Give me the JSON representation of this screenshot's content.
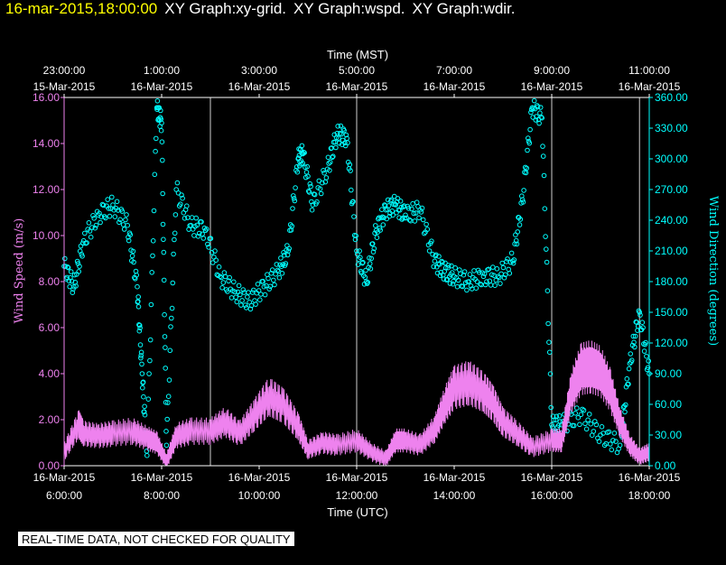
{
  "header": {
    "timestamp": "16-mar-2015,18:00:00",
    "titles": [
      "XY Graph:xy-grid.",
      "XY Graph:wspd.",
      "XY Graph:wdir."
    ]
  },
  "disclaimer": "REAL-TIME DATA, NOT CHECKED FOR QUALITY",
  "chart_data": {
    "type": "scatter",
    "top_axis": {
      "label": "Time (MST)",
      "ticks": [
        {
          "time": "23:00:00",
          "date": "15-Mar-2015"
        },
        {
          "time": "1:00:00",
          "date": "16-Mar-2015"
        },
        {
          "time": "3:00:00",
          "date": "16-Mar-2015"
        },
        {
          "time": "5:00:00",
          "date": "16-Mar-2015"
        },
        {
          "time": "7:00:00",
          "date": "16-Mar-2015"
        },
        {
          "time": "9:00:00",
          "date": "16-Mar-2015"
        },
        {
          "time": "11:00:00",
          "date": "16-Mar-2015"
        }
      ]
    },
    "bottom_axis": {
      "label": "Time (UTC)",
      "ticks": [
        {
          "date": "16-Mar-2015",
          "time": "6:00:00"
        },
        {
          "date": "16-Mar-2015",
          "time": "8:00:00"
        },
        {
          "date": "16-Mar-2015",
          "time": "10:00:00"
        },
        {
          "date": "16-Mar-2015",
          "time": "12:00:00"
        },
        {
          "date": "16-Mar-2015",
          "time": "14:00:00"
        },
        {
          "date": "16-Mar-2015",
          "time": "16:00:00"
        },
        {
          "date": "16-Mar-2015",
          "time": "18:00:00"
        }
      ],
      "range_utc_hours": [
        6,
        18
      ]
    },
    "left_axis": {
      "label": "Wind Speed (m/s)",
      "color": "#ee82ee",
      "ylim": [
        0,
        16
      ],
      "ticks": [
        "0.00",
        "2.00",
        "4.00",
        "6.00",
        "8.00",
        "10.00",
        "12.00",
        "14.00",
        "16.00"
      ]
    },
    "right_axis": {
      "label": "Wind Direction (degrees)",
      "color": "#00ffff",
      "ylim": [
        0,
        360
      ],
      "ticks": [
        "0.00",
        "30.00",
        "60.00",
        "90.00",
        "120.00",
        "150.00",
        "180.00",
        "210.00",
        "240.00",
        "270.00",
        "300.00",
        "330.00",
        "360.00"
      ]
    },
    "grid_x_utc_hours": [
      9,
      12,
      16,
      17.8
    ],
    "series": [
      {
        "name": "wspd",
        "axis": "left",
        "color": "#ee82ee",
        "style": "line",
        "x": [
          6.0,
          6.3,
          6.4,
          6.7,
          7.0,
          7.4,
          7.7,
          7.9,
          8.1,
          8.3,
          8.6,
          9.0,
          9.3,
          9.6,
          9.9,
          10.2,
          10.5,
          10.8,
          11.0,
          11.3,
          11.6,
          12.0,
          12.3,
          12.6,
          12.8,
          13.0,
          13.3,
          13.6,
          13.8,
          14.0,
          14.3,
          14.6,
          14.8,
          15.0,
          15.3,
          15.6,
          16.0,
          16.2,
          16.4,
          16.6,
          16.8,
          17.0,
          17.2,
          17.4,
          17.6,
          17.8,
          18.0
        ],
        "y": [
          0.6,
          1.8,
          1.4,
          1.3,
          1.4,
          1.5,
          1.2,
          1.0,
          0.2,
          1.3,
          1.5,
          1.5,
          1.9,
          1.4,
          2.2,
          3.0,
          2.6,
          1.7,
          0.7,
          1.0,
          0.9,
          1.1,
          0.6,
          0.3,
          1.1,
          1.1,
          0.9,
          1.6,
          2.6,
          3.4,
          3.6,
          3.2,
          2.7,
          1.9,
          1.4,
          0.8,
          1.1,
          1.1,
          3.2,
          4.2,
          4.3,
          4.1,
          3.3,
          1.9,
          0.9,
          0.4,
          0.6
        ]
      },
      {
        "name": "wdir",
        "axis": "right",
        "color": "#00ffff",
        "style": "circles",
        "x": [
          6.0,
          6.2,
          6.4,
          6.7,
          7.0,
          7.3,
          7.5,
          7.6,
          7.7,
          7.9,
          8.0,
          8.1,
          8.3,
          8.6,
          8.9,
          9.2,
          9.5,
          9.8,
          10.1,
          10.4,
          10.6,
          10.8,
          10.9,
          11.1,
          11.4,
          11.6,
          11.8,
          12.0,
          12.2,
          12.4,
          12.6,
          12.8,
          13.0,
          13.3,
          13.6,
          13.8,
          14.0,
          14.3,
          14.6,
          14.9,
          15.2,
          15.4,
          15.6,
          15.8,
          16.0,
          16.2,
          16.6,
          17.0,
          17.4,
          17.6,
          17.8,
          18.0
        ],
        "y": [
          195,
          175,
          220,
          245,
          255,
          235,
          175,
          90,
          10,
          350,
          335,
          20,
          270,
          235,
          230,
          185,
          170,
          160,
          175,
          190,
          210,
          300,
          305,
          255,
          290,
          325,
          320,
          210,
          180,
          230,
          250,
          255,
          245,
          250,
          200,
          190,
          185,
          180,
          185,
          185,
          200,
          260,
          350,
          340,
          40,
          40,
          50,
          30,
          20,
          100,
          150,
          90
        ]
      }
    ]
  }
}
